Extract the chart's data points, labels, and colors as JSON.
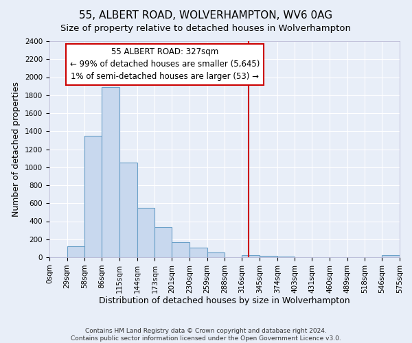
{
  "title": "55, ALBERT ROAD, WOLVERHAMPTON, WV6 0AG",
  "subtitle": "Size of property relative to detached houses in Wolverhampton",
  "xlabel": "Distribution of detached houses by size in Wolverhampton",
  "ylabel": "Number of detached properties",
  "footer_lines": [
    "Contains HM Land Registry data © Crown copyright and database right 2024.",
    "Contains public sector information licensed under the Open Government Licence v3.0."
  ],
  "bin_edges": [
    0,
    29,
    58,
    86,
    115,
    144,
    173,
    201,
    230,
    259,
    288,
    316,
    345,
    374,
    403,
    431,
    460,
    489,
    518,
    546,
    575
  ],
  "bin_labels": [
    "0sqm",
    "29sqm",
    "58sqm",
    "86sqm",
    "115sqm",
    "144sqm",
    "173sqm",
    "201sqm",
    "230sqm",
    "259sqm",
    "288sqm",
    "316sqm",
    "345sqm",
    "374sqm",
    "403sqm",
    "431sqm",
    "460sqm",
    "489sqm",
    "518sqm",
    "546sqm",
    "575sqm"
  ],
  "counts": [
    0,
    125,
    1350,
    1890,
    1050,
    550,
    335,
    165,
    105,
    55,
    0,
    25,
    15,
    10,
    0,
    0,
    0,
    0,
    0,
    20
  ],
  "bar_color": "#c8d8ee",
  "bar_edge_color": "#6aa0c8",
  "vline_x": 327,
  "vline_color": "#cc0000",
  "annotation_title": "55 ALBERT ROAD: 327sqm",
  "annotation_line1": "← 99% of detached houses are smaller (5,645)",
  "annotation_line2": "1% of semi-detached houses are larger (53) →",
  "annotation_box_color": "#ffffff",
  "annotation_box_edge": "#cc0000",
  "ylim": [
    0,
    2400
  ],
  "yticks": [
    0,
    200,
    400,
    600,
    800,
    1000,
    1200,
    1400,
    1600,
    1800,
    2000,
    2200,
    2400
  ],
  "background_color": "#e8eef8",
  "grid_color": "#ffffff",
  "title_fontsize": 11,
  "subtitle_fontsize": 9.5,
  "axis_label_fontsize": 9,
  "tick_fontsize": 7.5,
  "annotation_fontsize": 8.5,
  "footer_fontsize": 6.5
}
